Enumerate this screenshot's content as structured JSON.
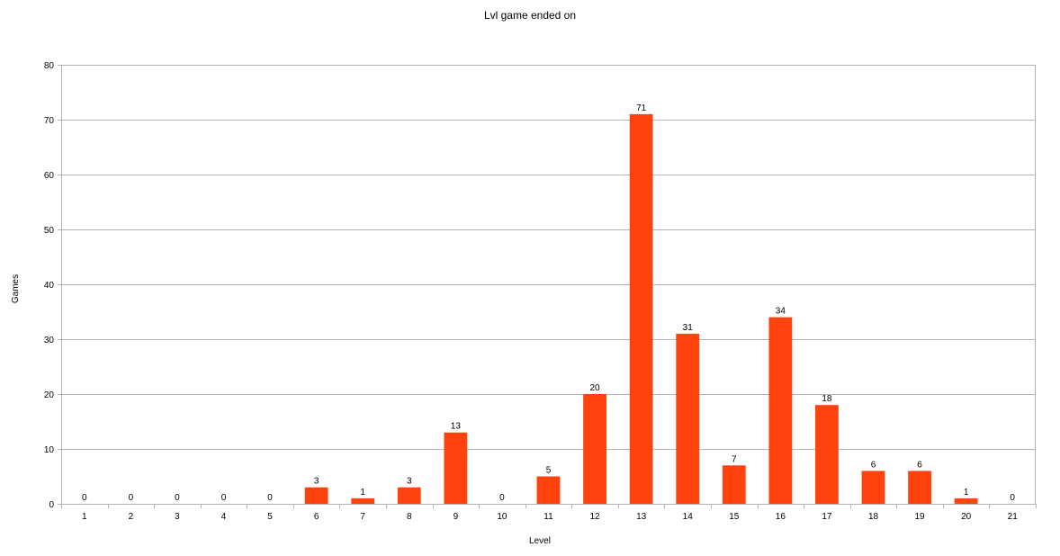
{
  "chart_data": {
    "type": "bar",
    "title": "Lvl game ended on",
    "xlabel": "Level",
    "ylabel": "Games",
    "categories": [
      "1",
      "2",
      "3",
      "4",
      "5",
      "6",
      "7",
      "8",
      "9",
      "10",
      "11",
      "12",
      "13",
      "14",
      "15",
      "16",
      "17",
      "18",
      "19",
      "20",
      "21"
    ],
    "values": [
      0,
      0,
      0,
      0,
      0,
      3,
      1,
      3,
      13,
      0,
      5,
      20,
      71,
      31,
      7,
      34,
      18,
      6,
      6,
      1,
      0
    ],
    "ylim": [
      0,
      80
    ],
    "yticks": [
      0,
      10,
      20,
      30,
      40,
      50,
      60,
      70,
      80
    ],
    "grid": true,
    "legend": "none",
    "bar_color": "#ff420e"
  }
}
